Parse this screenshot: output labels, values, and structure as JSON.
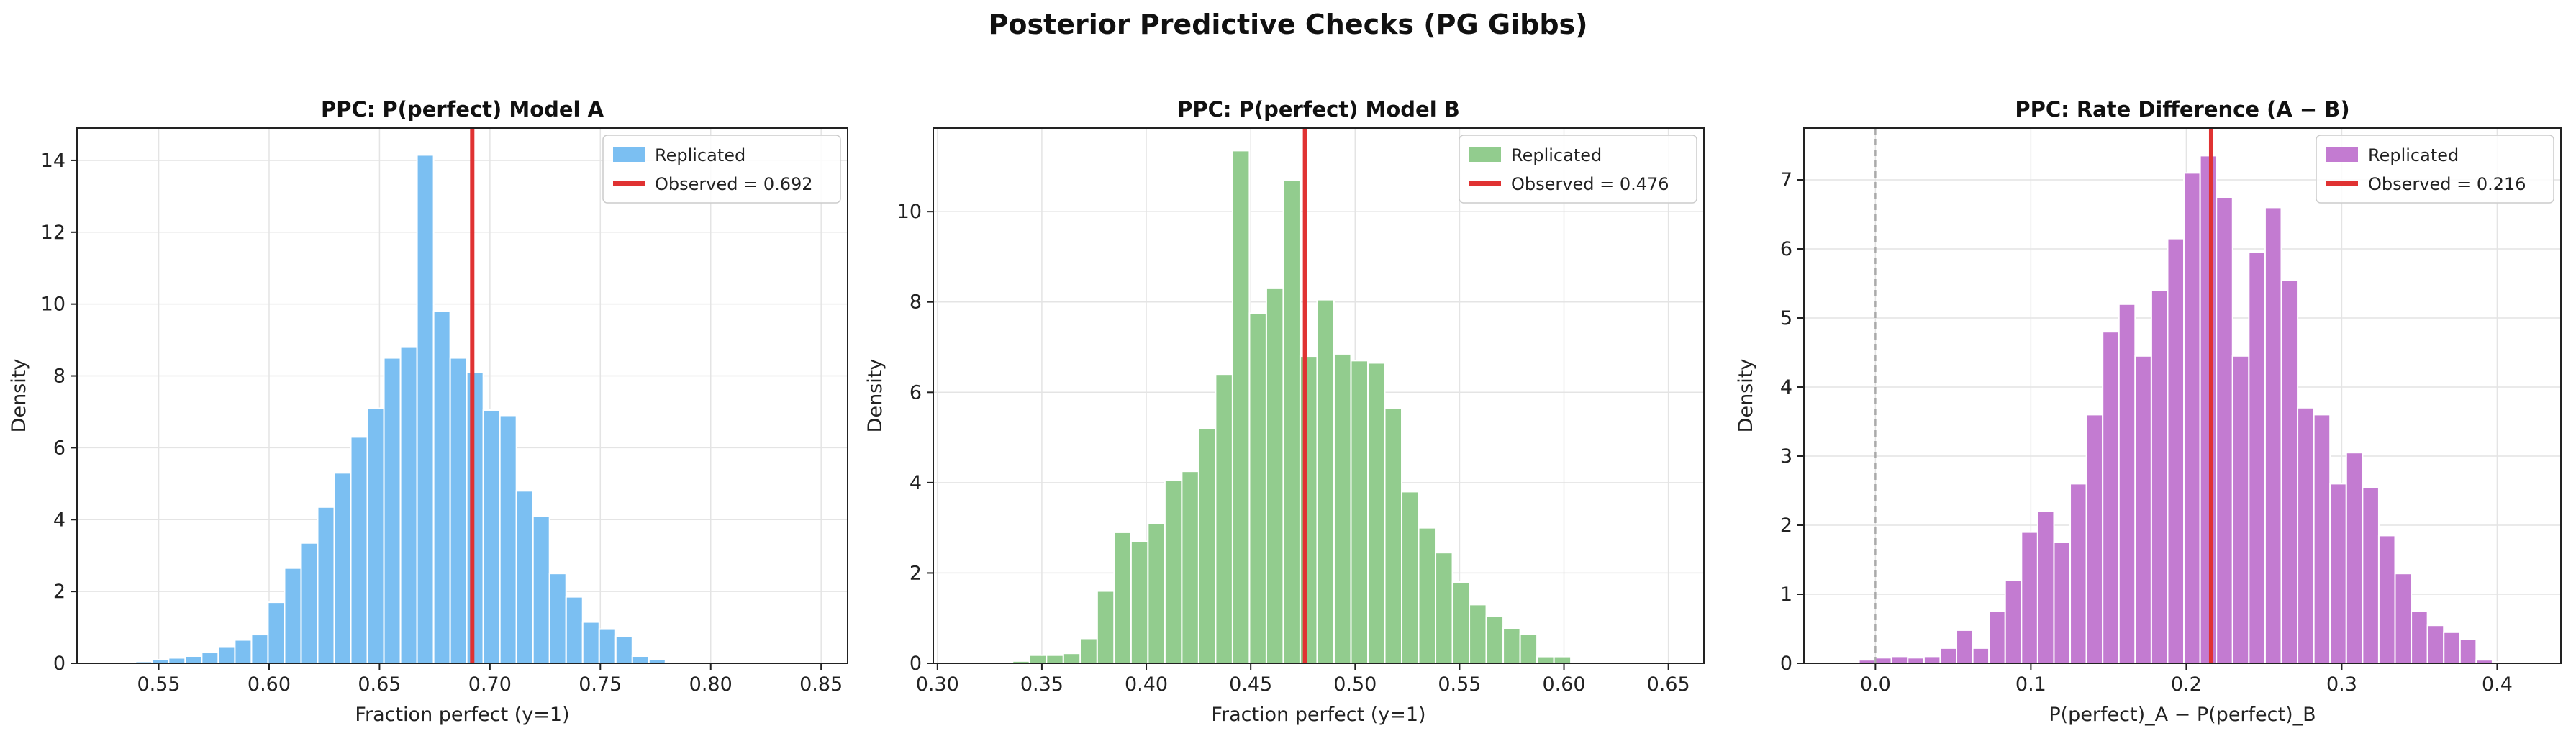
{
  "figure": {
    "title": "Posterior Predictive Checks (PG Gibbs)"
  },
  "colors": {
    "observed_line": "#e03232",
    "grid": "#e4e4e4",
    "zero_line": "#aaaaaa"
  },
  "chart_data": [
    {
      "type": "bar",
      "title": "PPC: P(perfect) Model A",
      "xlabel": "Fraction perfect (y=1)",
      "ylabel": "Density",
      "xlim": [
        0.513,
        0.862
      ],
      "ylim": [
        0,
        14.9
      ],
      "xticks": [
        "0.55",
        "0.60",
        "0.65",
        "0.70",
        "0.75",
        "0.80",
        "0.85"
      ],
      "yticks": [
        "0",
        "2",
        "4",
        "6",
        "8",
        "10",
        "12",
        "14"
      ],
      "grid": true,
      "legend_position": "top-right",
      "color": "#7bbff2",
      "series_name": "Replicated",
      "bins": {
        "start": 0.532,
        "width": 0.0075,
        "values": [
          0.02,
          0.05,
          0.1,
          0.15,
          0.2,
          0.3,
          0.45,
          0.65,
          0.8,
          1.7,
          2.65,
          3.35,
          4.35,
          5.3,
          6.3,
          7.1,
          8.5,
          8.8,
          14.15,
          9.8,
          8.5,
          8.1,
          7.05,
          6.9,
          4.8,
          4.1,
          2.5,
          1.85,
          1.15,
          0.95,
          0.75,
          0.2,
          0.1,
          0.03,
          0.02
        ]
      },
      "observed": 0.692,
      "observed_label": "Observed = 0.692"
    },
    {
      "type": "bar",
      "title": "PPC: P(perfect) Model B",
      "xlabel": "Fraction perfect (y=1)",
      "ylabel": "Density",
      "xlim": [
        0.298,
        0.667
      ],
      "ylim": [
        0,
        11.85
      ],
      "xticks": [
        "0.30",
        "0.35",
        "0.40",
        "0.45",
        "0.50",
        "0.55",
        "0.60",
        "0.65"
      ],
      "yticks": [
        "0",
        "2",
        "4",
        "6",
        "8",
        "10"
      ],
      "grid": true,
      "legend_position": "top-right",
      "color": "#92cc8e",
      "series_name": "Replicated",
      "bins": {
        "start": 0.336,
        "width": 0.0081,
        "values": [
          0.05,
          0.18,
          0.18,
          0.22,
          0.55,
          1.6,
          2.9,
          2.7,
          3.1,
          4.05,
          4.25,
          5.2,
          6.4,
          11.35,
          7.75,
          8.3,
          10.7,
          6.8,
          8.05,
          6.85,
          6.7,
          6.65,
          5.65,
          3.8,
          3.0,
          2.45,
          1.8,
          1.3,
          1.05,
          0.78,
          0.65,
          0.15,
          0.15
        ]
      },
      "observed": 0.476,
      "observed_label": "Observed = 0.476"
    },
    {
      "type": "bar",
      "title": "PPC: Rate Difference (A − B)",
      "xlabel": "P(perfect)_A − P(perfect)_B",
      "ylabel": "Density",
      "xlim": [
        -0.046,
        0.441
      ],
      "ylim": [
        0,
        7.75
      ],
      "xticks": [
        "0.0",
        "0.1",
        "0.2",
        "0.3",
        "0.4"
      ],
      "yticks": [
        "0",
        "1",
        "2",
        "3",
        "4",
        "5",
        "6",
        "7"
      ],
      "grid": true,
      "legend_position": "top-right",
      "color": "#c37bd1",
      "series_name": "Replicated",
      "bins": {
        "start": -0.021,
        "width": 0.01045,
        "values": [
          0.02,
          0.05,
          0.08,
          0.1,
          0.08,
          0.1,
          0.22,
          0.48,
          0.22,
          0.75,
          1.2,
          1.9,
          2.2,
          1.75,
          2.6,
          3.6,
          4.8,
          5.2,
          4.45,
          5.4,
          6.15,
          7.1,
          7.35,
          6.75,
          4.45,
          5.95,
          6.6,
          5.55,
          3.7,
          3.6,
          2.6,
          3.05,
          2.55,
          1.85,
          1.3,
          0.75,
          0.55,
          0.45,
          0.35,
          0.05,
          0.02
        ]
      },
      "observed": 0.216,
      "observed_label": "Observed = 0.216",
      "reference_line": 0.0
    }
  ]
}
